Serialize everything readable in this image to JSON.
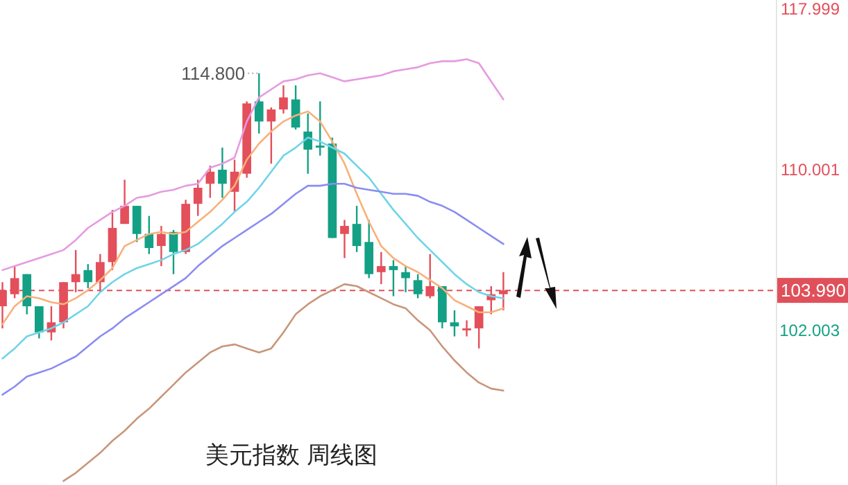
{
  "chart_data": {
    "type": "candlestick",
    "title": "美元指数 周线图",
    "categories": [
      null,
      null,
      null,
      null,
      null,
      null,
      null,
      null,
      null,
      null,
      null,
      null,
      null,
      null,
      null,
      null,
      null,
      null,
      null,
      null,
      null,
      null,
      null,
      null,
      null,
      null,
      null,
      null,
      null,
      null,
      null,
      null,
      null,
      null,
      null,
      null,
      null,
      null,
      null,
      null,
      null,
      null
    ],
    "ylim": [
      94.3,
      118.45
    ],
    "yticks": [
      {
        "value": 102.003,
        "label": "102.003"
      },
      {
        "value": 110.001,
        "label": "110.001"
      },
      {
        "value": 117.999,
        "label": "117.999"
      }
    ],
    "tick_labels": "y",
    "ohlc": [
      [
        103.2,
        104.4,
        102.1,
        104.0
      ],
      [
        103.8,
        105.2,
        103.6,
        104.6
      ],
      [
        104.8,
        104.8,
        102.8,
        103.2
      ],
      [
        103.2,
        103.2,
        101.6,
        101.9
      ],
      [
        101.9,
        103.2,
        101.5,
        102.4
      ],
      [
        102.4,
        104.4,
        102.1,
        104.4
      ],
      [
        104.4,
        106.0,
        103.9,
        104.8
      ],
      [
        105.0,
        105.3,
        104.1,
        104.4
      ],
      [
        104.4,
        105.8,
        103.9,
        105.4
      ],
      [
        105.4,
        108.0,
        105.0,
        107.1
      ],
      [
        107.3,
        109.5,
        107.3,
        108.2
      ],
      [
        108.2,
        108.2,
        106.4,
        106.8
      ],
      [
        106.8,
        107.7,
        105.8,
        106.1
      ],
      [
        106.2,
        107.2,
        105.2,
        106.8
      ],
      [
        106.9,
        107.0,
        104.8,
        105.9
      ],
      [
        105.9,
        108.5,
        105.8,
        108.3
      ],
      [
        108.3,
        109.5,
        107.7,
        109.1
      ],
      [
        109.3,
        110.2,
        108.6,
        109.9
      ],
      [
        110.0,
        111.1,
        108.6,
        109.3
      ],
      [
        108.9,
        110.5,
        107.9,
        109.9
      ],
      [
        109.8,
        113.4,
        109.6,
        113.3
      ],
      [
        113.4,
        114.8,
        111.8,
        112.4
      ],
      [
        112.4,
        113.1,
        110.3,
        113.0
      ],
      [
        113.0,
        114.2,
        112.8,
        113.6
      ],
      [
        113.5,
        114.2,
        112.0,
        112.1
      ],
      [
        111.9,
        112.8,
        109.8,
        111.0
      ],
      [
        111.2,
        113.4,
        110.7,
        111.1
      ],
      [
        111.3,
        111.6,
        106.6,
        106.6
      ],
      [
        106.8,
        107.5,
        105.6,
        107.2
      ],
      [
        107.3,
        108.2,
        105.9,
        106.2
      ],
      [
        106.4,
        107.5,
        104.6,
        104.8
      ],
      [
        104.9,
        105.9,
        104.3,
        105.2
      ],
      [
        105.2,
        105.5,
        103.7,
        105.0
      ],
      [
        104.9,
        105.2,
        103.9,
        104.6
      ],
      [
        104.5,
        104.8,
        103.6,
        103.8
      ],
      [
        103.7,
        105.8,
        103.6,
        104.2
      ],
      [
        104.2,
        104.2,
        102.1,
        102.4
      ],
      [
        102.4,
        103.0,
        101.7,
        102.2
      ],
      [
        102.0,
        102.5,
        101.7,
        102.1
      ],
      [
        102.1,
        103.2,
        101.1,
        103.2
      ],
      [
        103.5,
        104.2,
        102.8,
        103.8
      ],
      [
        103.8,
        104.9,
        103.0,
        103.99
      ]
    ],
    "series": [
      {
        "type": "line",
        "color": "#e59be0",
        "values": [
          105.0,
          105.2,
          105.4,
          105.6,
          105.8,
          106.0,
          106.5,
          107.1,
          107.5,
          107.9,
          108.2,
          108.6,
          108.7,
          108.9,
          109.0,
          109.2,
          109.3,
          110.1,
          110.3,
          110.6,
          112.4,
          113.6,
          114.0,
          114.4,
          114.5,
          114.7,
          114.8,
          114.6,
          114.4,
          114.5,
          114.6,
          114.7,
          114.9,
          115.0,
          115.1,
          115.3,
          115.4,
          115.4,
          115.5,
          115.3,
          114.4,
          113.5
        ]
      },
      {
        "type": "line",
        "color": "#f8b07a",
        "values": [
          102.3,
          103.2,
          103.7,
          103.6,
          103.4,
          103.3,
          103.6,
          104.0,
          104.5,
          105.1,
          106.2,
          106.5,
          106.8,
          106.9,
          106.8,
          106.9,
          107.4,
          107.9,
          108.5,
          109.2,
          110.5,
          111.3,
          111.9,
          112.4,
          112.7,
          112.9,
          112.4,
          111.4,
          110.3,
          108.8,
          107.4,
          106.2,
          105.6,
          105.2,
          104.9,
          104.5,
          104.1,
          103.5,
          103.2,
          102.9,
          102.9,
          103.1
        ]
      },
      {
        "type": "line",
        "color": "#6fd4e8",
        "values": [
          100.6,
          101.1,
          101.7,
          101.9,
          102.1,
          102.4,
          102.8,
          103.2,
          103.9,
          104.4,
          104.8,
          105.1,
          105.3,
          105.5,
          105.8,
          106.0,
          106.3,
          106.8,
          107.3,
          107.9,
          108.4,
          109.1,
          109.9,
          110.7,
          111.1,
          111.6,
          111.4,
          111.1,
          110.8,
          110.2,
          109.6,
          108.8,
          108.0,
          107.3,
          106.6,
          106.0,
          105.4,
          104.8,
          104.3,
          103.9,
          103.7,
          103.6
        ]
      },
      {
        "type": "line",
        "color": "#8a8cf2",
        "values": [
          98.8,
          99.2,
          99.7,
          99.9,
          100.1,
          100.4,
          100.7,
          101.2,
          101.7,
          102.1,
          102.6,
          103.0,
          103.4,
          103.8,
          104.2,
          104.6,
          105.2,
          105.7,
          106.2,
          106.6,
          107.0,
          107.4,
          107.8,
          108.3,
          108.8,
          109.2,
          109.2,
          109.3,
          109.3,
          109.1,
          109.0,
          108.9,
          108.8,
          108.8,
          108.7,
          108.4,
          108.2,
          107.9,
          107.5,
          107.1,
          106.7,
          106.3
        ]
      },
      {
        "type": "line",
        "color": "#c8967a",
        "values": [
          null,
          null,
          null,
          null,
          null,
          94.5,
          94.9,
          95.4,
          95.9,
          96.5,
          97.0,
          97.6,
          98.1,
          98.7,
          99.3,
          99.9,
          100.4,
          100.9,
          101.2,
          101.3,
          101.1,
          100.9,
          101.1,
          101.9,
          102.8,
          103.3,
          103.7,
          104.0,
          104.3,
          104.2,
          103.9,
          103.6,
          103.3,
          103.1,
          102.5,
          102.0,
          101.2,
          100.5,
          99.9,
          99.4,
          99.1,
          99.0
        ]
      }
    ],
    "ref_lines": [
      {
        "axis": "y",
        "value": 103.99,
        "label": "103.990",
        "color": "#e0505a",
        "line_style": "dashed"
      }
    ],
    "annotations": [
      "114.800"
    ]
  }
}
